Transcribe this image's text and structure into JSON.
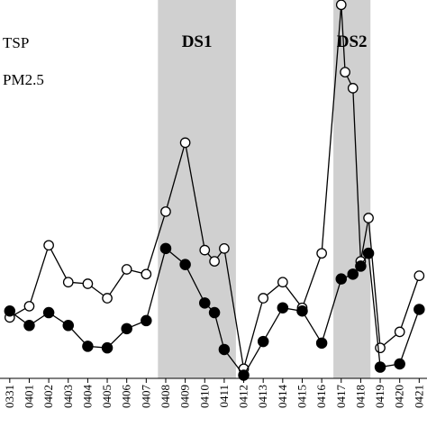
{
  "chart_data": {
    "type": "line",
    "categories": [
      "0331",
      "0401",
      "0402",
      "0403",
      "0404",
      "0405",
      "0406",
      "0407",
      "0408",
      "0409",
      "0410",
      "0411",
      "0412",
      "0413",
      "0414",
      "0415",
      "0416",
      "0417",
      "0418",
      "0419",
      "0420",
      "0421"
    ],
    "x_start_index": -0.5,
    "series": [
      {
        "name": "TSP",
        "marker": "open-circle",
        "points": [
          {
            "x": 0.0,
            "y": 170
          },
          {
            "x": 1.0,
            "y": 205
          },
          {
            "x": 2.0,
            "y": 395
          },
          {
            "x": 3.0,
            "y": 280
          },
          {
            "x": 4.0,
            "y": 275
          },
          {
            "x": 5.0,
            "y": 230
          },
          {
            "x": 6.0,
            "y": 320
          },
          {
            "x": 7.0,
            "y": 305
          },
          {
            "x": 8.0,
            "y": 500
          },
          {
            "x": 9.0,
            "y": 715
          },
          {
            "x": 10.0,
            "y": 380
          },
          {
            "x": 10.5,
            "y": 345
          },
          {
            "x": 11.0,
            "y": 385
          },
          {
            "x": 12.0,
            "y": 10
          },
          {
            "x": 13.0,
            "y": 230
          },
          {
            "x": 14.0,
            "y": 280
          },
          {
            "x": 15.0,
            "y": 200
          },
          {
            "x": 16.0,
            "y": 370
          },
          {
            "x": 17.0,
            "y": 1145
          },
          {
            "x": 17.2,
            "y": 935
          },
          {
            "x": 17.6,
            "y": 885
          },
          {
            "x": 18.0,
            "y": 345
          },
          {
            "x": 18.4,
            "y": 480
          },
          {
            "x": 19.0,
            "y": 75
          },
          {
            "x": 20.0,
            "y": 125
          },
          {
            "x": 21.0,
            "y": 300
          }
        ]
      },
      {
        "name": "PM2.5",
        "marker": "filled-circle",
        "points": [
          {
            "x": 0.0,
            "y": 190
          },
          {
            "x": 1.0,
            "y": 145
          },
          {
            "x": 2.0,
            "y": 185
          },
          {
            "x": 3.0,
            "y": 145
          },
          {
            "x": 4.0,
            "y": 80
          },
          {
            "x": 5.0,
            "y": 75
          },
          {
            "x": 6.0,
            "y": 135
          },
          {
            "x": 7.0,
            "y": 160
          },
          {
            "x": 8.0,
            "y": 385
          },
          {
            "x": 9.0,
            "y": 335
          },
          {
            "x": 10.0,
            "y": 215
          },
          {
            "x": 10.5,
            "y": 185
          },
          {
            "x": 11.0,
            "y": 70
          },
          {
            "x": 12.0,
            "y": -10
          },
          {
            "x": 13.0,
            "y": 95
          },
          {
            "x": 14.0,
            "y": 200
          },
          {
            "x": 15.0,
            "y": 190
          },
          {
            "x": 16.0,
            "y": 90
          },
          {
            "x": 17.0,
            "y": 290
          },
          {
            "x": 17.6,
            "y": 305
          },
          {
            "x": 18.0,
            "y": 330
          },
          {
            "x": 18.4,
            "y": 370
          },
          {
            "x": 19.0,
            "y": 15
          },
          {
            "x": 20.0,
            "y": 25
          },
          {
            "x": 21.0,
            "y": 195
          }
        ]
      }
    ],
    "xlim": [
      -0.5,
      21.4
    ],
    "ylim": [
      -20,
      1160
    ],
    "shaded_regions": [
      {
        "label": "DS1",
        "start": 7.6,
        "end": 11.6
      },
      {
        "label": "DS2",
        "start": 16.6,
        "end": 18.5
      }
    ],
    "legend_labels": [
      "TSP",
      "PM2.5"
    ],
    "legend": "top-left",
    "grid": false,
    "colors": {
      "line": "#000000",
      "shade": "#d0d0d0",
      "open_fill": "#ffffff"
    }
  }
}
